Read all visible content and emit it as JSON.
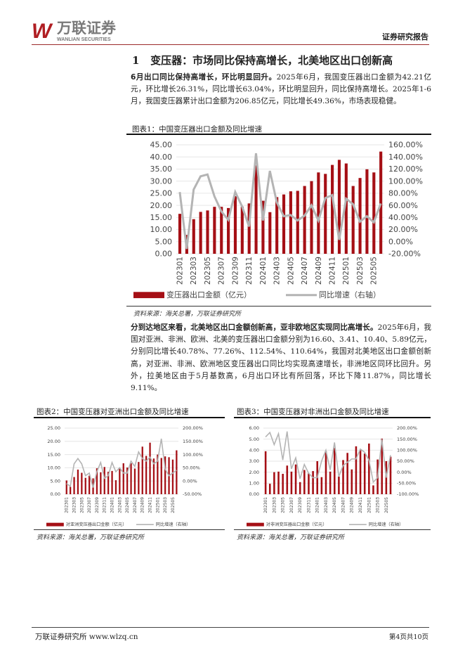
{
  "header": {
    "logo_w": "W",
    "logo_cn": "万联证券",
    "logo_en": "WANLIAN SECURITIES",
    "report_type": "证券研究报告"
  },
  "section": {
    "number": "1",
    "title": "变压器：市场同比保持高增长，北美地区出口创新高"
  },
  "para1": {
    "lead": "6月出口同比保持高增长，环比明显回升。",
    "body": "2025年6月，我国变压器出口金额为42.21亿元，环比增长26.31%，同比增长63.04%，环比明显回升，同比保持高增长。2025年1-6月，我国变压器累计出口金额为206.85亿元，同比增长49.36%，市场表现稳健。"
  },
  "fig1": {
    "title": "图表1：中国变压器出口金额及同比增速",
    "source": "资料来源：海关总署，万联证券研究所"
  },
  "para2": {
    "lead": "分到达地区来看，北美地区出口金额创新高，亚非欧地区实现同比高增长。",
    "body": "2025年6月，我国对亚洲、非洲、欧洲、北美的变压器出口金额分别为16.60、3.41、10.40、5.89亿元，分别同比增长40.78%、77.26%、112.54%、110.64%，我国对北美地区出口金额创新高，对亚洲、非洲、欧洲地区变压器出口同比均实现高速增长，非洲地区同环比回升。另外，拉美地区由于5月基数高，6月出口环比有所回落，环比下降11.87%，同比增长9.11%。"
  },
  "fig2": {
    "title": "图表2：中国变压器对亚洲出口金额及同比增速",
    "source": "资料来源：海关总署，万联证券研究所"
  },
  "fig3": {
    "title": "图表3：中国变压器对非洲出口金额及同比增速",
    "source": "资料来源：海关总署，万联证券研究所"
  },
  "footer": {
    "left": "万联证券研究所 www.wlzq.cn",
    "right": "第4页共10页"
  },
  "colors": {
    "bar": "#a50f15",
    "line": "#b4b4b4",
    "brand": "#b01e23"
  },
  "chart_data": [
    {
      "type": "bar+line",
      "title": "中国变压器出口金额及同比增速",
      "categories": [
        "202301",
        "202302",
        "202303",
        "202304",
        "202305",
        "202306",
        "202307",
        "202308",
        "202309",
        "202310",
        "202311",
        "202312",
        "202401",
        "202402",
        "202403",
        "202404",
        "202405",
        "202406",
        "202407",
        "202408",
        "202409",
        "202410",
        "202411",
        "202412",
        "202501",
        "202502",
        "202503",
        "202504",
        "202505",
        "202506"
      ],
      "tick_labels": [
        "202301",
        "202303",
        "202305",
        "202307",
        "202309",
        "202311",
        "202401",
        "202403",
        "202405",
        "202407",
        "202409",
        "202411",
        "202501",
        "202503",
        "202505"
      ],
      "series": [
        {
          "name": "变压器出口金额（亿元）",
          "axis": "left",
          "values": [
            16.5,
            7.8,
            14.3,
            17.3,
            17.9,
            19.4,
            19.4,
            18.9,
            23.8,
            19.5,
            20.8,
            36.5,
            21.9,
            17.2,
            23.4,
            24.5,
            25.8,
            26.0,
            28.0,
            30.0,
            33.6,
            33.0,
            36.7,
            38.8,
            37.3,
            28.0,
            31.3,
            34.9,
            33.6,
            42.21
          ]
        },
        {
          "name": "同比增速（右轴）",
          "axis": "right",
          "values": [
            82,
            -12,
            86,
            108,
            111,
            75,
            50,
            36,
            82,
            58,
            25,
            146,
            35,
            117,
            65,
            42,
            44,
            35,
            43,
            60,
            35,
            72,
            77,
            3,
            71,
            62,
            33,
            42,
            32,
            63.04
          ]
        }
      ],
      "ylim": [
        0,
        45
      ],
      "yticks": [
        "0.00",
        "5.00",
        "10.00",
        "15.00",
        "20.00",
        "25.00",
        "30.00",
        "35.00",
        "40.00",
        "45.00"
      ],
      "y2lim": [
        -20,
        160
      ],
      "y2ticks": [
        "-20.00%",
        "0.00%",
        "20.00%",
        "40.00%",
        "60.00%",
        "80.00%",
        "100.00%",
        "120.00%",
        "140.00%",
        "160.00%"
      ]
    },
    {
      "type": "bar+line",
      "title": "中国变压器对亚洲出口金额及同比增速",
      "tick_labels": [
        "202301",
        "202303",
        "202305",
        "202307",
        "202309",
        "202311",
        "202401",
        "202403",
        "202405",
        "202407",
        "202409",
        "202411",
        "202501",
        "202503",
        "202505"
      ],
      "series": [
        {
          "name": "对亚洲变压器出口金额（亿元）",
          "axis": "left",
          "values": [
            5.2,
            2.8,
            6.5,
            9.3,
            8.1,
            6.2,
            7.0,
            6.0,
            9.8,
            8.3,
            10.3,
            8.5,
            8.8,
            5.3,
            9.8,
            11.7,
            10.1,
            11.7,
            9.7,
            12.2,
            18.0,
            14.5,
            19.5,
            13.5,
            15.0,
            13.7,
            14.3,
            14.0,
            13.1,
            16.6
          ]
        },
        {
          "name": "同比增速（右轴）",
          "axis": "right",
          "values": [
            -10,
            -20,
            65,
            85,
            65,
            20,
            30,
            -25,
            35,
            70,
            10,
            20,
            70,
            35,
            50,
            30,
            30,
            75,
            55,
            110,
            85,
            75,
            90,
            65,
            75,
            160,
            45,
            20,
            30,
            40.78
          ]
        }
      ],
      "ylim": [
        0,
        25
      ],
      "yticks": [
        "0.00",
        "5.00",
        "10.00",
        "15.00",
        "20.00",
        "25.00"
      ],
      "y2lim": [
        -50,
        200
      ],
      "y2ticks": [
        "-50.00%",
        "0.00%",
        "50.00%",
        "100.00%",
        "150.00%",
        "200.00%"
      ]
    },
    {
      "type": "bar+line",
      "title": "中国变压器对非洲出口金额及同比增速",
      "tick_labels": [
        "202301",
        "202303",
        "202305",
        "202307",
        "202309",
        "202311",
        "202401",
        "202403",
        "202405",
        "202407",
        "202409",
        "202411",
        "202501",
        "202503",
        "202505"
      ],
      "series": [
        {
          "name": "对非洲变压器出口金额（亿元）",
          "axis": "left",
          "values": [
            3.9,
            0.95,
            2.0,
            2.05,
            1.85,
            2.6,
            2.05,
            2.7,
            1.1,
            2.2,
            1.9,
            2.1,
            3.0,
            1.55,
            3.9,
            2.05,
            4.2,
            1.6,
            3.1,
            3.75,
            2.25,
            4.35,
            4.0,
            3.7,
            4.6,
            0.8,
            3.15,
            5.05,
            3.0,
            3.41
          ]
        },
        {
          "name": "同比增速（右轴）",
          "axis": "right",
          "values": [
            160,
            180,
            125,
            175,
            55,
            185,
            15,
            65,
            -30,
            35,
            -5,
            -25,
            -25,
            50,
            100,
            10,
            135,
            -20,
            30,
            45,
            60,
            60,
            105,
            90,
            55,
            -45,
            -25,
            150,
            -25,
            77.26
          ]
        }
      ],
      "ylim": [
        0,
        6
      ],
      "yticks": [
        "0.00",
        "1.00",
        "2.00",
        "3.00",
        "4.00",
        "5.00",
        "6.00"
      ],
      "y2lim": [
        -100,
        200
      ],
      "y2ticks": [
        "-100.00%",
        "-50.00%",
        "0.00%",
        "50.00%",
        "100.00%",
        "150.00%",
        "200.00%"
      ]
    }
  ]
}
